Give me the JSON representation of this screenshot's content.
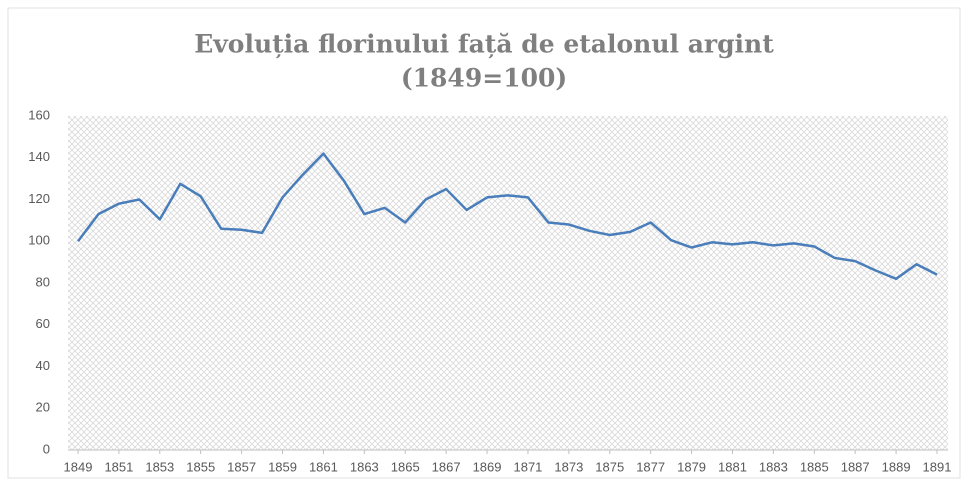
{
  "chart_data": {
    "type": "line",
    "title": [
      "Evoluția florinului față de etalonul argint",
      "(1849=100)"
    ],
    "x": [
      1849,
      1850,
      1851,
      1852,
      1853,
      1854,
      1855,
      1856,
      1857,
      1858,
      1859,
      1860,
      1861,
      1862,
      1863,
      1864,
      1865,
      1866,
      1867,
      1868,
      1869,
      1870,
      1871,
      1872,
      1873,
      1874,
      1875,
      1876,
      1877,
      1878,
      1879,
      1880,
      1881,
      1882,
      1883,
      1884,
      1885,
      1886,
      1887,
      1888,
      1889,
      1890,
      1891
    ],
    "series": [
      {
        "color": "#4a7ebb",
        "values": [
          100,
          113,
          118,
          120,
          110.5,
          127.5,
          121.5,
          106,
          105.5,
          104,
          121,
          132,
          142,
          129,
          113,
          116,
          109,
          120,
          125,
          115,
          121,
          122,
          121,
          109,
          108,
          105,
          103,
          104.5,
          109,
          100.5,
          97,
          99.5,
          98.5,
          99.5,
          98,
          99,
          97.5,
          92,
          90.5,
          86,
          82,
          89,
          84
        ]
      }
    ],
    "xlim": [
      1849,
      1891
    ],
    "xticks": [
      1849,
      1851,
      1853,
      1855,
      1857,
      1859,
      1861,
      1863,
      1865,
      1867,
      1869,
      1871,
      1873,
      1875,
      1877,
      1879,
      1881,
      1883,
      1885,
      1887,
      1889,
      1891
    ],
    "ylim": [
      0,
      160
    ],
    "yticks": [
      0,
      20,
      40,
      60,
      80,
      100,
      120,
      140,
      160
    ],
    "grid": false
  }
}
